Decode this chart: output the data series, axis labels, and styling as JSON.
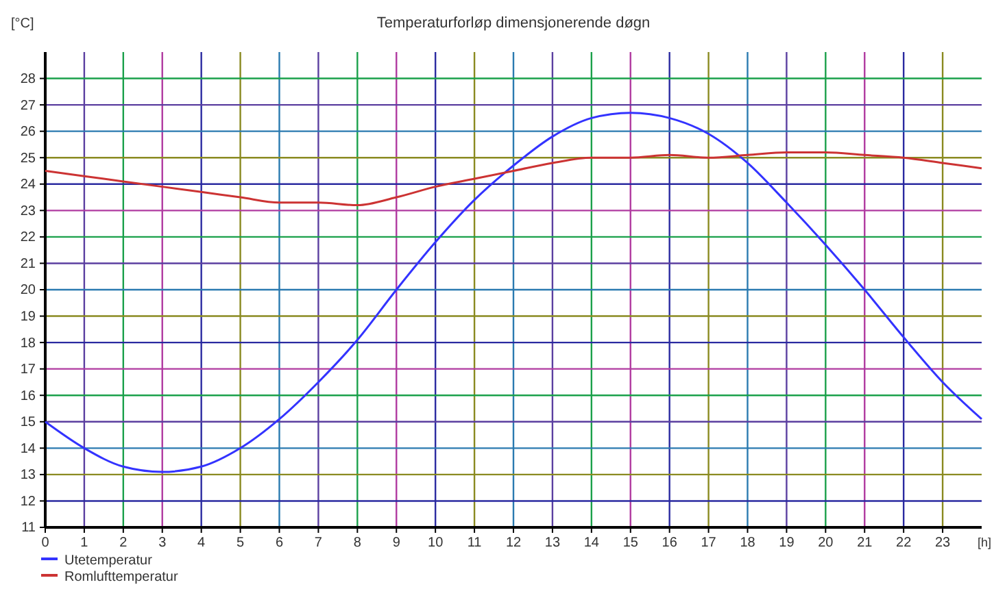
{
  "chart_data": {
    "type": "line",
    "title": "Temperaturforløp dimensjonerende døgn",
    "ylabel": "[°C]",
    "xlabel": "[h]",
    "x": [
      0,
      1,
      2,
      3,
      4,
      5,
      6,
      7,
      8,
      9,
      10,
      11,
      12,
      13,
      14,
      15,
      16,
      17,
      18,
      19,
      20,
      21,
      22,
      23,
      24
    ],
    "series": [
      {
        "name": "Utetemperatur",
        "color": "#3333ff",
        "values": [
          15,
          14,
          13.3,
          13.1,
          13.3,
          14,
          15.1,
          16.5,
          18.1,
          20,
          21.8,
          23.4,
          24.7,
          25.8,
          26.5,
          26.7,
          26.5,
          25.9,
          24.8,
          23.3,
          21.7,
          20,
          18.2,
          16.5,
          15.1
        ]
      },
      {
        "name": "Romlufttemperatur",
        "color": "#cc3333",
        "values": [
          24.5,
          24.3,
          24.1,
          23.9,
          23.7,
          23.5,
          23.3,
          23.3,
          23.2,
          23.5,
          23.9,
          24.2,
          24.5,
          24.8,
          25,
          25,
          25.1,
          25,
          25.1,
          25.2,
          25.2,
          25.1,
          25,
          24.8,
          24.6
        ]
      }
    ],
    "xlim": [
      0,
      24
    ],
    "xticks": [
      0,
      1,
      2,
      3,
      4,
      5,
      6,
      7,
      8,
      9,
      10,
      11,
      12,
      13,
      14,
      15,
      16,
      17,
      18,
      19,
      20,
      21,
      22,
      23
    ],
    "ylim": [
      11,
      29
    ],
    "yticks": [
      11,
      12,
      13,
      14,
      15,
      16,
      17,
      18,
      19,
      20,
      21,
      22,
      23,
      24,
      25,
      26,
      27,
      28
    ],
    "grid": true,
    "legend": "bottom left",
    "line_style": "solid"
  }
}
